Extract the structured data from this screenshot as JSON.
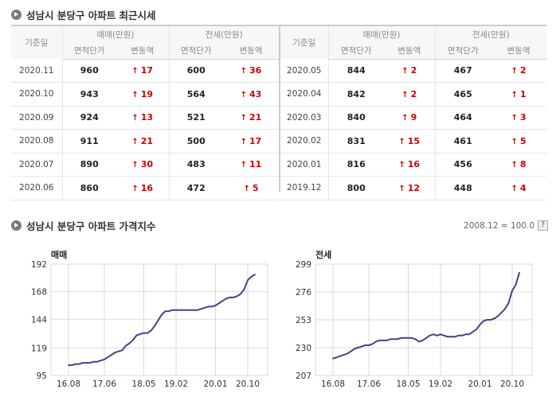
{
  "section1": {
    "title": "성남시 분당구 아파트 최근시세"
  },
  "table": {
    "col_date": "기준일",
    "col_sale": "매매(만원)",
    "col_jeonse": "전세(만원)",
    "col_unit_price": "면적단가",
    "col_change": "변동액",
    "arrow": "↑",
    "left_rows": [
      {
        "date": "2020.11",
        "sale": "960",
        "sale_chg": "17",
        "jeonse": "600",
        "jeonse_chg": "36"
      },
      {
        "date": "2020.10",
        "sale": "943",
        "sale_chg": "19",
        "jeonse": "564",
        "jeonse_chg": "43"
      },
      {
        "date": "2020.09",
        "sale": "924",
        "sale_chg": "13",
        "jeonse": "521",
        "jeonse_chg": "21"
      },
      {
        "date": "2020.08",
        "sale": "911",
        "sale_chg": "21",
        "jeonse": "500",
        "jeonse_chg": "17"
      },
      {
        "date": "2020.07",
        "sale": "890",
        "sale_chg": "30",
        "jeonse": "483",
        "jeonse_chg": "11"
      },
      {
        "date": "2020.06",
        "sale": "860",
        "sale_chg": "16",
        "jeonse": "472",
        "jeonse_chg": "5"
      }
    ],
    "right_rows": [
      {
        "date": "2020.05",
        "sale": "844",
        "sale_chg": "2",
        "jeonse": "467",
        "jeonse_chg": "2"
      },
      {
        "date": "2020.04",
        "sale": "842",
        "sale_chg": "2",
        "jeonse": "465",
        "jeonse_chg": "1"
      },
      {
        "date": "2020.03",
        "sale": "840",
        "sale_chg": "9",
        "jeonse": "464",
        "jeonse_chg": "3"
      },
      {
        "date": "2020.02",
        "sale": "831",
        "sale_chg": "15",
        "jeonse": "461",
        "jeonse_chg": "5"
      },
      {
        "date": "2020.01",
        "sale": "816",
        "sale_chg": "16",
        "jeonse": "456",
        "jeonse_chg": "8"
      },
      {
        "date": "2019.12",
        "sale": "800",
        "sale_chg": "12",
        "jeonse": "448",
        "jeonse_chg": "4"
      }
    ]
  },
  "section2": {
    "title": "성남시 분당구 아파트 가격지수",
    "base_note": "2008.12 = 100.0",
    "help_label": "?"
  },
  "colors": {
    "line": "#4b3f8c",
    "grid": "#d9d9d9",
    "up": "#d00000"
  },
  "chart_data": [
    {
      "type": "line",
      "title": "매매",
      "ylim": [
        95,
        192
      ],
      "yticks": [
        95,
        119,
        144,
        168,
        192
      ],
      "xticks": [
        "16.08",
        "17.06",
        "18.05",
        "19.02",
        "20.01",
        "20.10"
      ],
      "xtick_pos": [
        0,
        10,
        21,
        30,
        41,
        50
      ],
      "grid": true,
      "series": [
        {
          "values": [
            104,
            104,
            105,
            105,
            106,
            106,
            106,
            107,
            107,
            108,
            109,
            111,
            113,
            115,
            116,
            117,
            121,
            123,
            126,
            130,
            131,
            132,
            132,
            134,
            138,
            143,
            148,
            151,
            151,
            152,
            152,
            152,
            152,
            152,
            152,
            152,
            152,
            153,
            154,
            155,
            155,
            156,
            158,
            160,
            162,
            163,
            163,
            164,
            166,
            170,
            178,
            181,
            183
          ]
        }
      ]
    },
    {
      "type": "line",
      "title": "전세",
      "ylim": [
        207,
        299
      ],
      "yticks": [
        207,
        230,
        253,
        276,
        299
      ],
      "xticks": [
        "16.08",
        "17.06",
        "18.05",
        "19.02",
        "20.01",
        "20.10"
      ],
      "xtick_pos": [
        0,
        10,
        21,
        30,
        41,
        50
      ],
      "grid": true,
      "series": [
        {
          "values": [
            221,
            222,
            223,
            224,
            225,
            227,
            229,
            230,
            231,
            232,
            232,
            233,
            235,
            236,
            236,
            236,
            237,
            237,
            237,
            238,
            238,
            238,
            238,
            237,
            235,
            236,
            238,
            240,
            241,
            240,
            241,
            240,
            239,
            239,
            239,
            240,
            240,
            241,
            241,
            243,
            245,
            249,
            252,
            253,
            253,
            254,
            256,
            259,
            262,
            267,
            277,
            282,
            292
          ]
        }
      ]
    }
  ]
}
